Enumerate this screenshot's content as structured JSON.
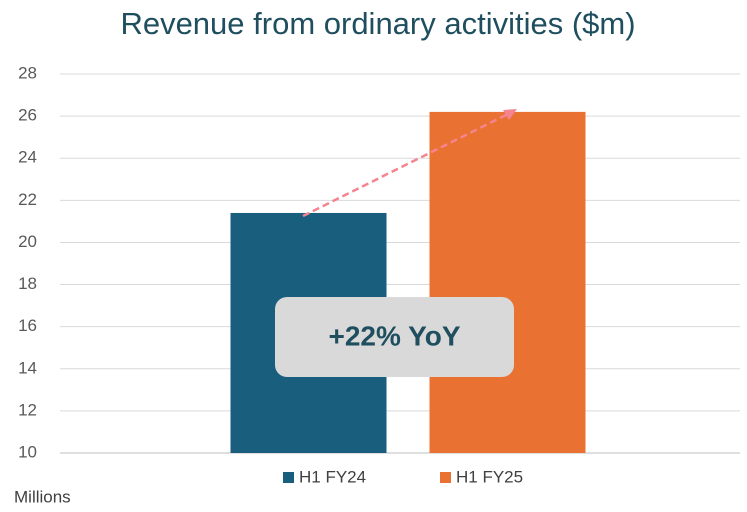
{
  "chart_data": {
    "type": "bar",
    "title": "Revenue from ordinary activities ($m)",
    "categories": [
      null
    ],
    "series": [
      {
        "name": "H1 FY24",
        "color": "#1a5e7e",
        "values": [
          21.4
        ]
      },
      {
        "name": "H1 FY25",
        "color": "#e97132",
        "values": [
          26.2
        ]
      }
    ],
    "ylim": [
      10,
      28
    ],
    "yticks": [
      10,
      12,
      14,
      16,
      18,
      20,
      22,
      24,
      26,
      28
    ],
    "y_unit_label": "Millions",
    "annotation": "+22% YoY",
    "grid": true
  }
}
